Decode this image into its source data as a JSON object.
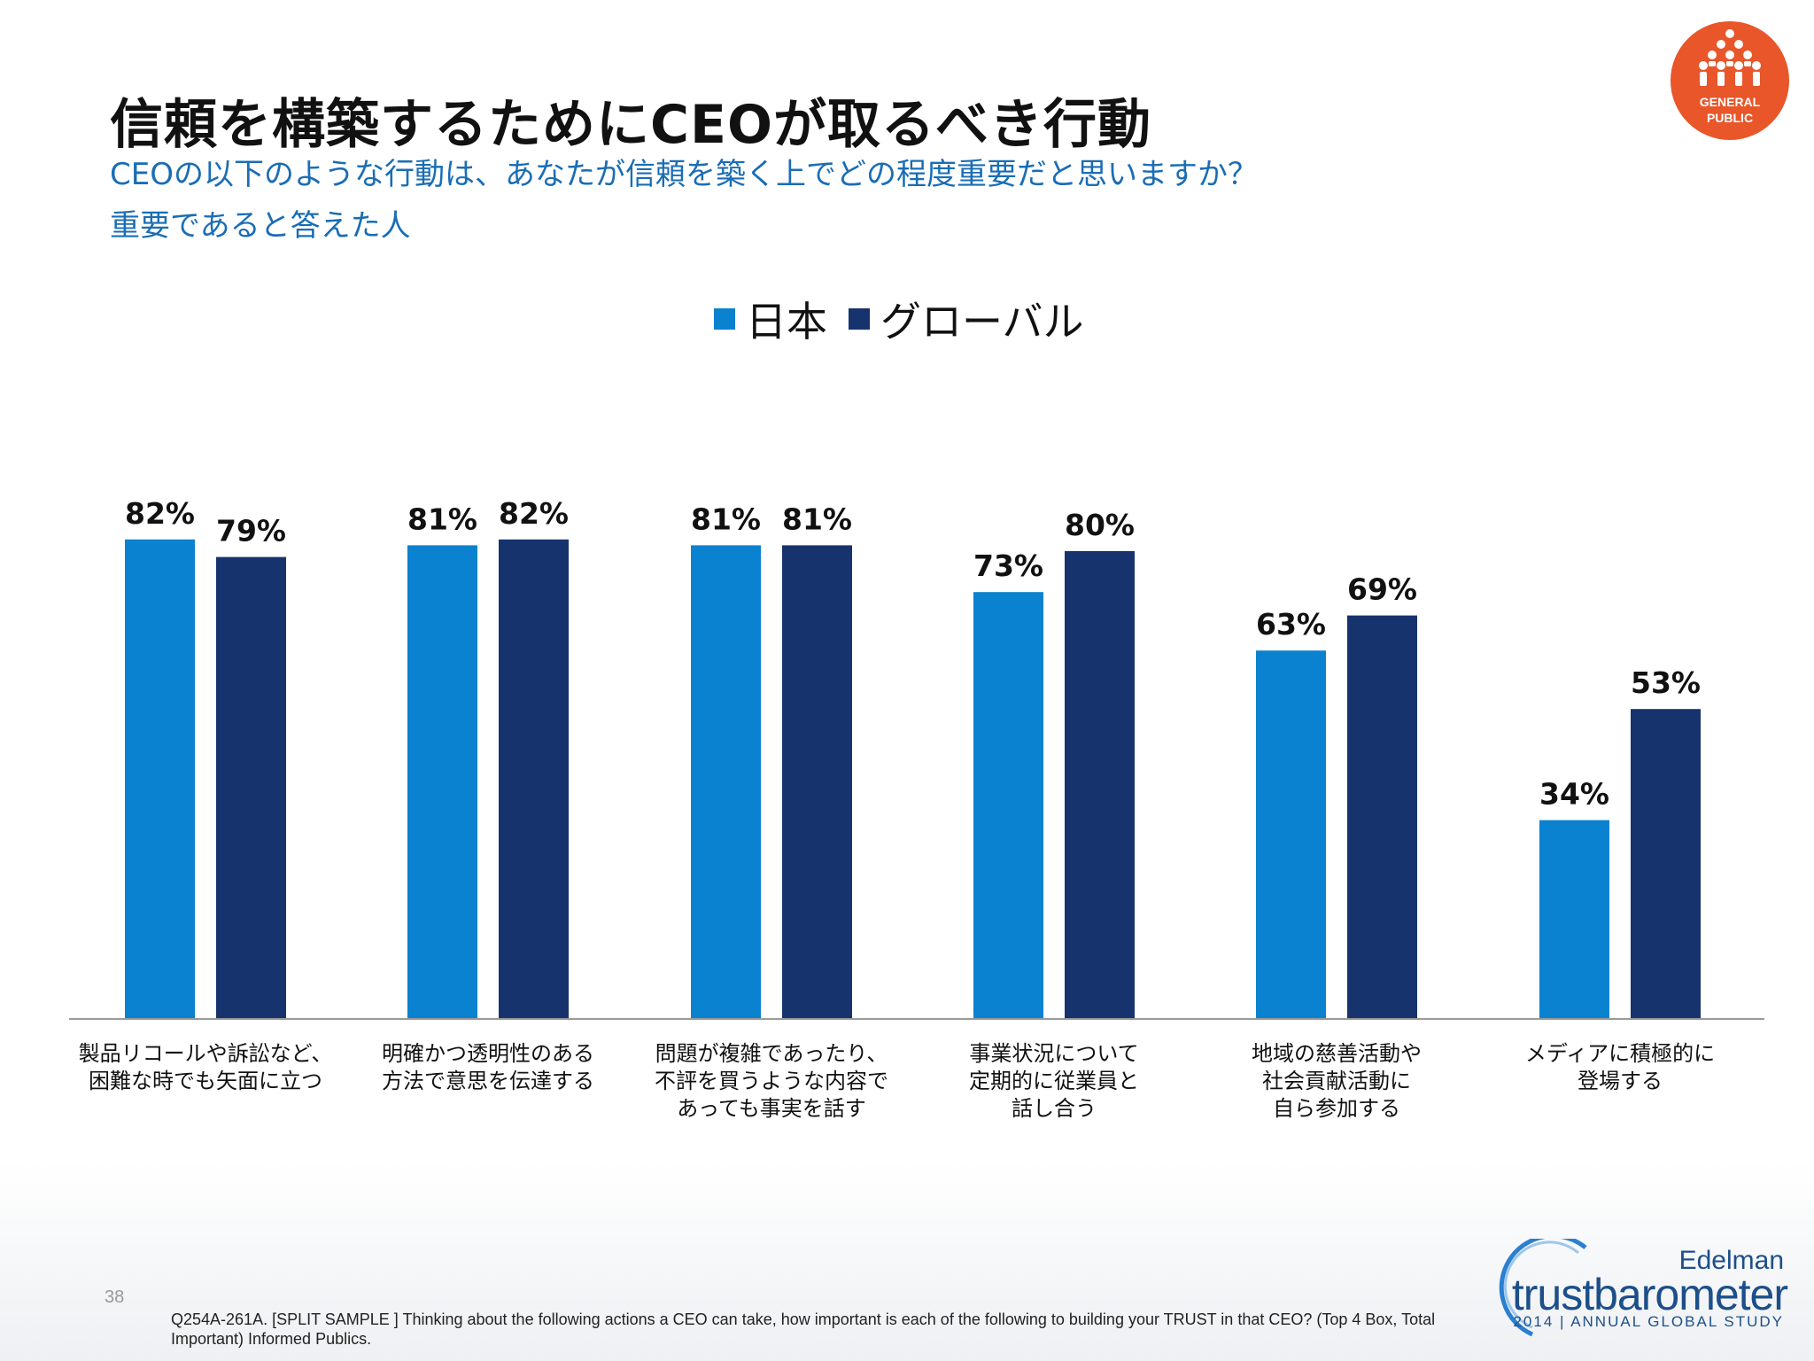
{
  "header": {
    "title": "信頼を構築するためにCEOが取るべき行動",
    "subtitle_line1": "CEOの以下のような行動は、あなたが信頼を築く上でどの程度重要だと思いますか？",
    "subtitle_line2": "重要であると答えた人"
  },
  "badge": {
    "line1": "GENERAL",
    "line2": "PUBLIC",
    "icon": "people-group-icon"
  },
  "colors": {
    "japan": "#0a82cf",
    "global": "#17336e",
    "badge": "#e8562a",
    "brand": "#1c4f8a"
  },
  "chart_data": {
    "type": "bar",
    "categories": [
      [
        "製品リコールや訴訟など、",
        "困難な時でも矢面に立つ"
      ],
      [
        "明確かつ透明性のある",
        "方法で意思を伝達する"
      ],
      [
        "問題が複雑であったり、",
        "不評を買うような内容で",
        "あっても事実を話す"
      ],
      [
        "事業状況について",
        "定期的に従業員と",
        "話し合う"
      ],
      [
        "地域の慈善活動や",
        "社会貢献活動に",
        "自ら参加する"
      ],
      [
        "メディアに積極的に",
        "登場する"
      ]
    ],
    "series": [
      {
        "name": "日本",
        "values": [
          82,
          81,
          81,
          73,
          63,
          34
        ],
        "color": "#0a82cf"
      },
      {
        "name": "グローバル",
        "values": [
          79,
          82,
          81,
          80,
          69,
          53
        ],
        "color": "#17336e"
      }
    ],
    "value_suffix": "%",
    "ylim": [
      0,
      100
    ],
    "legend": "top-center",
    "grid": false
  },
  "footer": {
    "page_number": "38",
    "note": "Q254A-261A. [SPLIT SAMPLE ] Thinking about the following actions a CEO can take, how important is each of the following to building your TRUST in that CEO? (Top 4 Box, Total Important) Informed Publics.",
    "brand_name": "Edelman",
    "brand_product": "trustbarometer",
    "brand_study": "2014 | ANNUAL GLOBAL STUDY"
  }
}
